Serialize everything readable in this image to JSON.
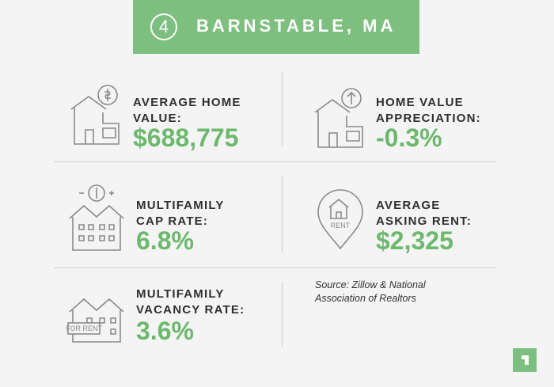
{
  "header": {
    "number": "4",
    "title": "BARNSTABLE, MA"
  },
  "stats": [
    {
      "label": "AVERAGE HOME VALUE:",
      "value": "$688,775"
    },
    {
      "label": "HOME VALUE APPRECIATION:",
      "value": "-0.3%"
    },
    {
      "label": "MULTIFAMILY CAP RATE:",
      "value": "6.8%"
    },
    {
      "label": "AVERAGE ASKING RENT:",
      "value": "$2,325",
      "icon_text": "RENT"
    },
    {
      "label": "MULTIFAMILY VACANCY RATE:",
      "value": "3.6%",
      "icon_text": "FOR RENT"
    }
  ],
  "source": "Source: Zillow & National Association of Realtors"
}
